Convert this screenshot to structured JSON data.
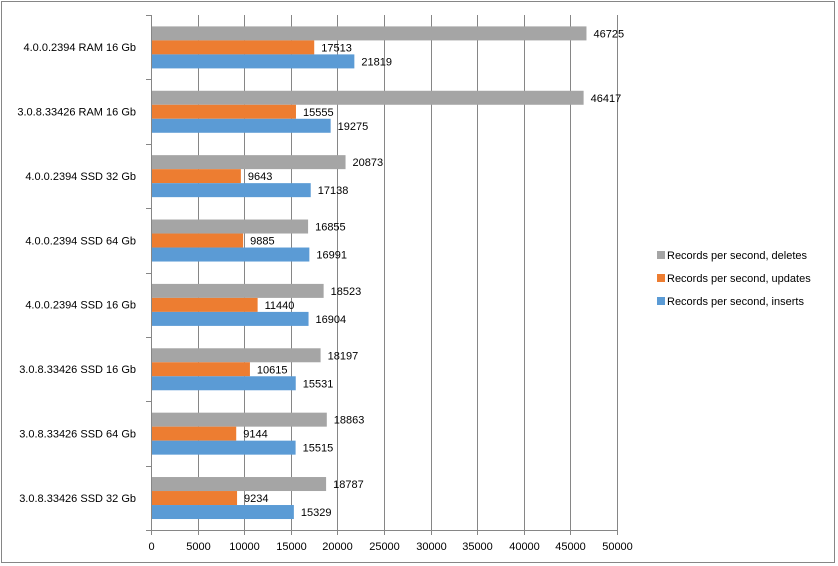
{
  "chart_data": {
    "type": "bar",
    "orientation": "horizontal",
    "categories": [
      "4.0.0.2394 RAM 16 Gb",
      "3.0.8.33426 RAM 16 Gb",
      "4.0.0.2394 SSD 32 Gb",
      "4.0.0.2394 SSD 64 Gb",
      "4.0.0.2394 SSD 16 Gb",
      "3.0.8.33426 SSD 16 Gb",
      "3.0.8.33426 SSD 64 Gb",
      "3.0.8.33426 SSD 32 Gb"
    ],
    "series": [
      {
        "name": "Records per second, deletes",
        "color": "#a5a5a5",
        "values": [
          46725,
          46417,
          20873,
          16855,
          18523,
          18197,
          18863,
          18787
        ]
      },
      {
        "name": "Records per second, updates",
        "color": "#ed7d31",
        "values": [
          17513,
          15555,
          9643,
          9885,
          11440,
          10615,
          9144,
          9234
        ]
      },
      {
        "name": "Records per second, inserts",
        "color": "#5b9bd5",
        "values": [
          21819,
          19275,
          17138,
          16991,
          16904,
          15531,
          15515,
          15329
        ]
      }
    ],
    "x_ticks": [
      "0",
      "5000",
      "10000",
      "15000",
      "20000",
      "25000",
      "30000",
      "35000",
      "40000",
      "45000",
      "50000"
    ],
    "xlim": [
      0,
      50000
    ],
    "grid": "vertical major gridlines",
    "legend_position": "right"
  }
}
